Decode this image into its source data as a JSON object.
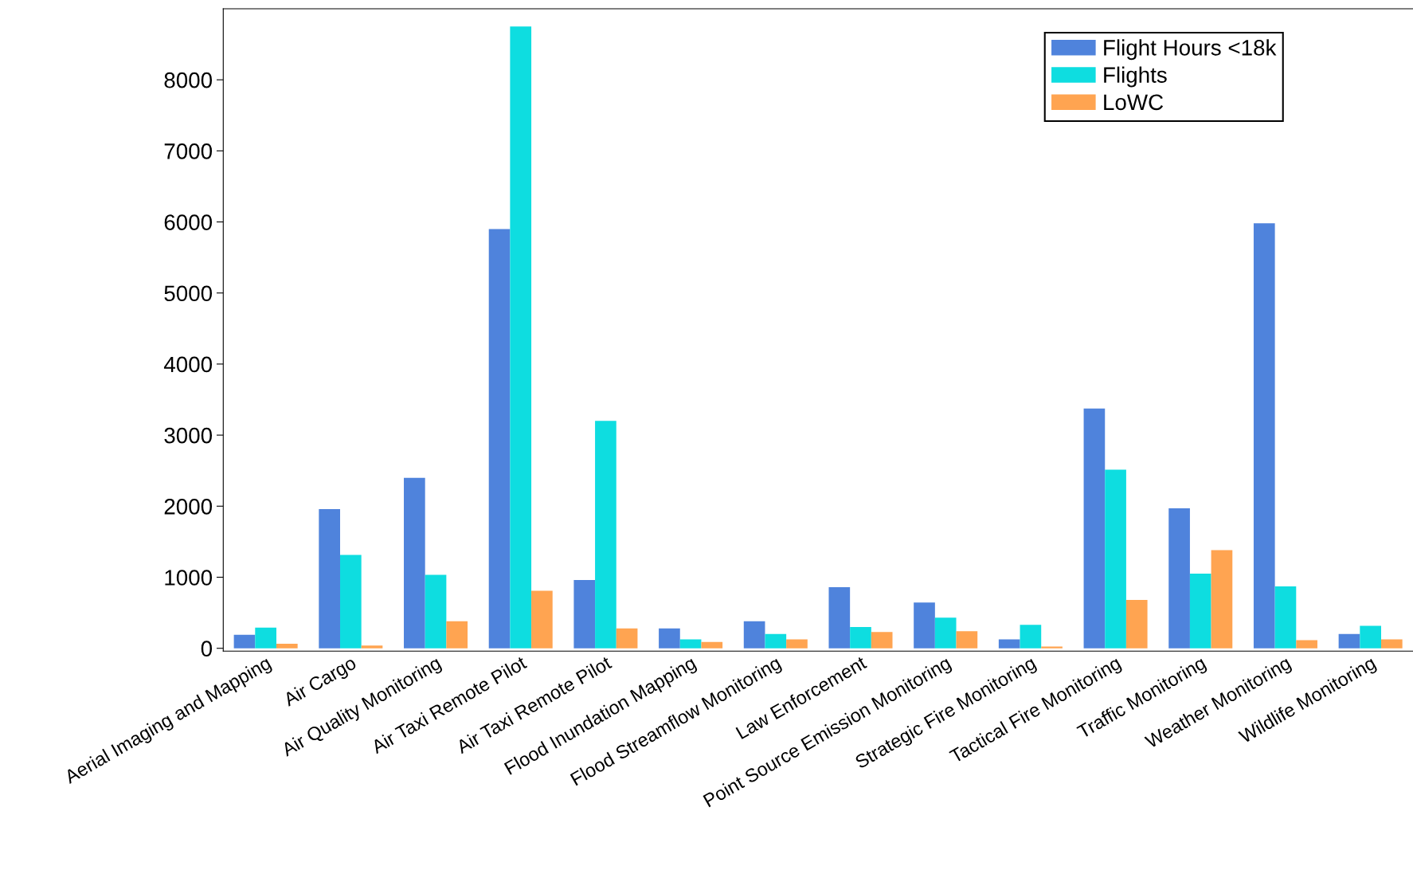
{
  "chart_data": {
    "type": "bar",
    "categories": [
      "Aerial Imaging and Mapping",
      "Air Cargo",
      "Air Quality Monitoring",
      "Air Taxi Remote Pilot",
      "Air Taxi Remote Pilot",
      "Flood Inundation Mapping",
      "Flood Streamflow Monitoring",
      "Law Enforcement",
      "Point Source Emission Monitoring",
      "Strategic Fire Monitoring",
      "Tactical Fire Monitoring",
      "Traffic Monitoring",
      "Weather Monitoring",
      "Wildlife Monitoring"
    ],
    "series": [
      {
        "name": "Flight Hours <18k",
        "color": "#4f83dc",
        "values": [
          190,
          1960,
          2400,
          5900,
          960,
          280,
          380,
          860,
          645,
          125,
          3375,
          1970,
          5980,
          200
        ]
      },
      {
        "name": "Flights",
        "color": "#0edde0",
        "values": [
          290,
          1315,
          1035,
          8750,
          3200,
          125,
          200,
          300,
          430,
          330,
          2515,
          1050,
          870,
          315
        ]
      },
      {
        "name": "LoWC",
        "color": "#ffa451",
        "values": [
          63,
          40,
          380,
          810,
          280,
          90,
          125,
          230,
          240,
          25,
          680,
          1380,
          115,
          125
        ]
      }
    ],
    "ylim": [
      -40,
      9000
    ],
    "yticks": [
      0,
      1000,
      2000,
      3000,
      4000,
      5000,
      6000,
      7000,
      8000
    ],
    "grid": false,
    "legend": "top right"
  }
}
